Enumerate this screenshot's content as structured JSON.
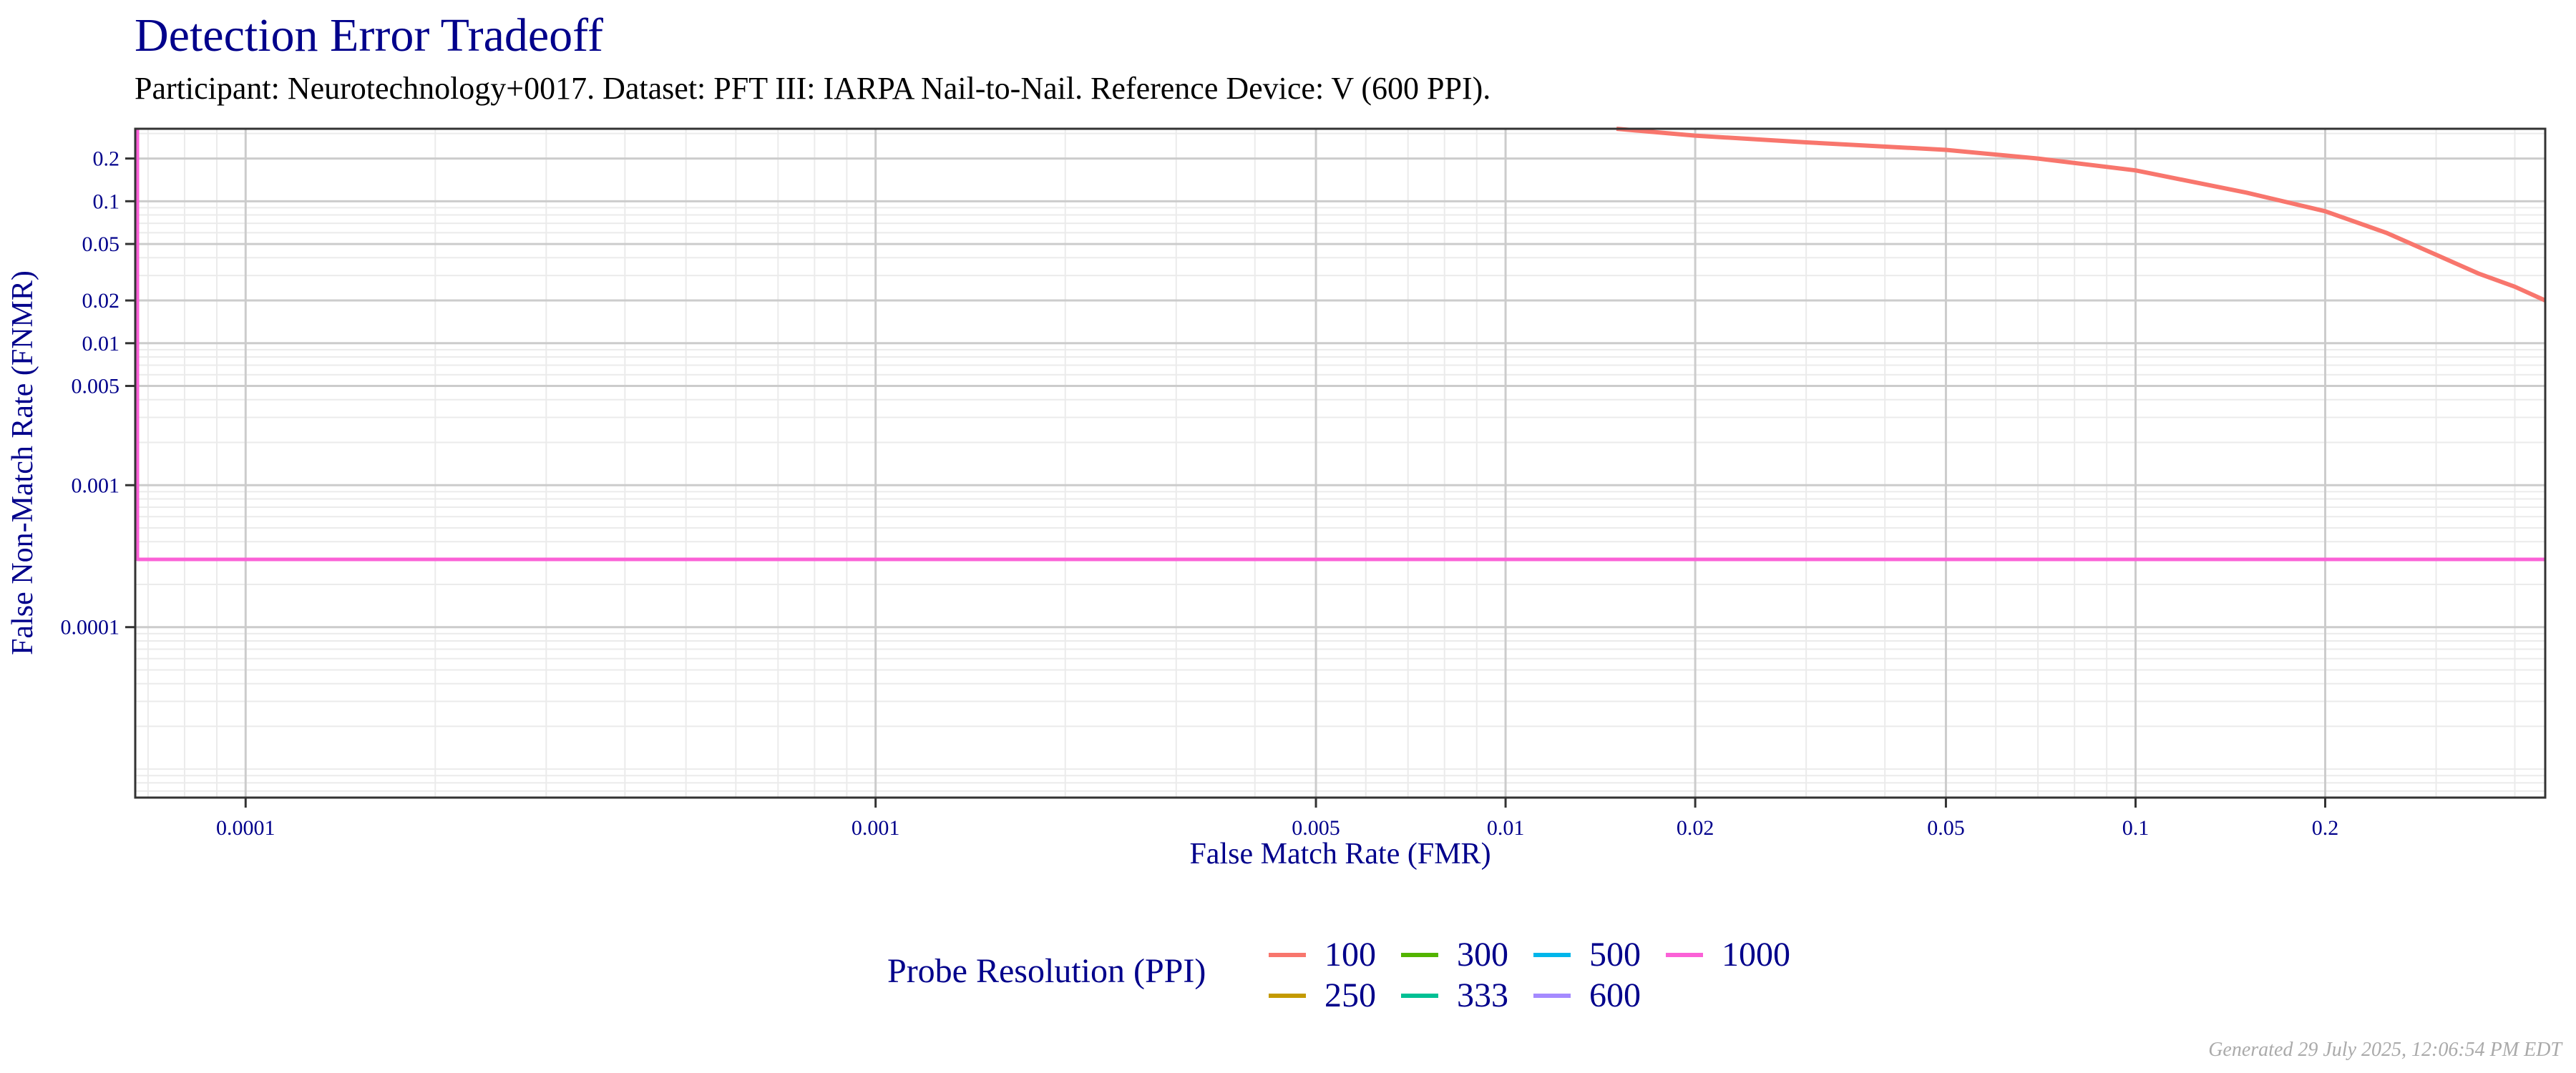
{
  "chart_data": {
    "type": "line",
    "title": "Detection Error Tradeoff",
    "subtitle": "Participant: Neurotechnology+0017. Dataset: PFT III: IARPA Nail-to-Nail. Reference Device: V (600 PPI).",
    "xlabel": "False Match Rate (FMR)",
    "ylabel": "False Non-Match Rate (FNMR)",
    "xscale": "log",
    "yscale": "log",
    "xlim": [
      6.68e-05,
      0.447
    ],
    "ylim": [
      6.3e-06,
      0.324
    ],
    "xticks": [
      0.0001,
      0.001,
      0.005,
      0.01,
      0.02,
      0.05,
      0.1,
      0.2
    ],
    "xtick_labels": [
      "0.0001",
      "0.001",
      "0.005",
      "0.01",
      "0.02",
      "0.05",
      "0.1",
      "0.2"
    ],
    "yticks": [
      0.2,
      0.1,
      0.05,
      0.02,
      0.01,
      0.005,
      0.001,
      0.0001
    ],
    "ytick_labels": [
      "0.2",
      "0.1",
      "0.05",
      "0.02",
      "0.01",
      "0.005",
      "0.001",
      "0.0001"
    ],
    "grid": true,
    "legend": {
      "title": "Probe Resolution (PPI)",
      "placement": "bottom",
      "entries": [
        {
          "label": "100",
          "color": "#F8766D"
        },
        {
          "label": "250",
          "color": "#C49A00"
        },
        {
          "label": "300",
          "color": "#53B400"
        },
        {
          "label": "333",
          "color": "#00C094"
        },
        {
          "label": "500",
          "color": "#00B6EB"
        },
        {
          "label": "600",
          "color": "#A58AFF"
        },
        {
          "label": "1000",
          "color": "#FB61D7"
        }
      ]
    },
    "series": [
      {
        "name": "100",
        "color": "#F8766D",
        "x": [
          0.015,
          0.02,
          0.03,
          0.05,
          0.07,
          0.1,
          0.15,
          0.2,
          0.25,
          0.3,
          0.35,
          0.4,
          0.447
        ],
        "y": [
          0.324,
          0.29,
          0.26,
          0.23,
          0.2,
          0.165,
          0.115,
          0.085,
          0.06,
          0.042,
          0.031,
          0.025,
          0.02
        ]
      },
      {
        "name": "300",
        "color": "#53B400",
        "x": [
          6.68e-05,
          6.68e-05
        ],
        "y": [
          0.0006,
          0.0003
        ]
      },
      {
        "name": "600",
        "color": "#A58AFF",
        "x": [
          6.68e-05,
          6.68e-05
        ],
        "y": [
          0.324,
          0.0006
        ]
      },
      {
        "name": "1000",
        "color": "#FB61D7",
        "x": [
          6.68e-05,
          6.68e-05,
          0.447
        ],
        "y": [
          0.324,
          0.0003,
          0.0003
        ]
      }
    ],
    "footer": "Generated 29 July 2025, 12:06:54 PM EDT"
  }
}
